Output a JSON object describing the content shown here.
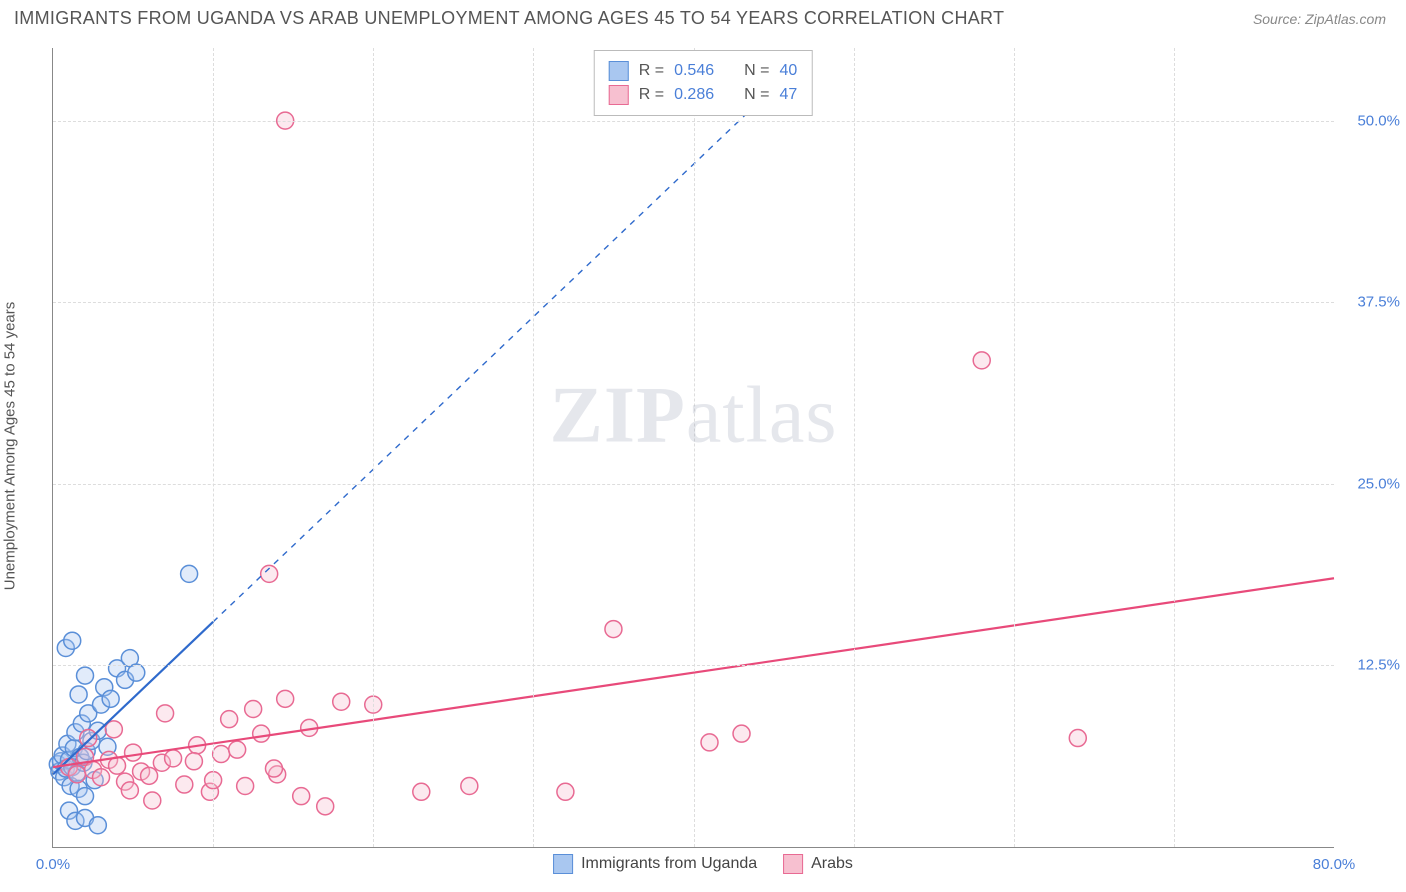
{
  "header": {
    "title": "IMMIGRANTS FROM UGANDA VS ARAB UNEMPLOYMENT AMONG AGES 45 TO 54 YEARS CORRELATION CHART",
    "source_prefix": "Source: ",
    "source": "ZipAtlas.com"
  },
  "watermark": {
    "part1": "ZIP",
    "part2": "atlas"
  },
  "chart": {
    "type": "scatter",
    "background_color": "#ffffff",
    "grid_color": "#dddddd",
    "axis_color": "#888888",
    "xlim": [
      0,
      80
    ],
    "ylim": [
      0,
      55
    ],
    "xticks": [
      {
        "v": 0.0,
        "label": "0.0%"
      },
      {
        "v": 80.0,
        "label": "80.0%"
      }
    ],
    "xgrid": [
      10,
      20,
      30,
      40,
      50,
      60,
      70
    ],
    "yticks": [
      {
        "v": 12.5,
        "label": "12.5%"
      },
      {
        "v": 25.0,
        "label": "25.0%"
      },
      {
        "v": 37.5,
        "label": "37.5%"
      },
      {
        "v": 50.0,
        "label": "50.0%"
      }
    ],
    "ylabel": "Unemployment Among Ages 45 to 54 years",
    "label_fontsize": 15,
    "tick_fontsize": 15,
    "tick_color": "#4a7fd8",
    "marker_radius": 8.5,
    "marker_opacity": 0.35,
    "marker_stroke_width": 1.5,
    "series": [
      {
        "name": "Immigrants from Uganda",
        "fill": "#a9c7f0",
        "stroke": "#5a8fd8",
        "line_color": "#2f6acc",
        "trend": {
          "x1": 0,
          "y1": 5.0,
          "x2": 10,
          "y2": 15.5,
          "dashed_extend_to_x": 45
        },
        "R": "0.546",
        "N": "40",
        "points": [
          [
            0.3,
            5.7
          ],
          [
            0.4,
            5.2
          ],
          [
            0.5,
            5.9
          ],
          [
            0.6,
            6.3
          ],
          [
            0.7,
            4.8
          ],
          [
            0.8,
            5.4
          ],
          [
            0.9,
            7.1
          ],
          [
            1.0,
            6.0
          ],
          [
            1.1,
            4.2
          ],
          [
            1.2,
            5.5
          ],
          [
            1.3,
            6.8
          ],
          [
            1.4,
            7.9
          ],
          [
            1.5,
            5.1
          ],
          [
            1.6,
            4.0
          ],
          [
            1.7,
            6.2
          ],
          [
            1.8,
            8.5
          ],
          [
            1.9,
            5.8
          ],
          [
            2.0,
            3.5
          ],
          [
            2.1,
            6.6
          ],
          [
            2.2,
            9.2
          ],
          [
            2.4,
            7.3
          ],
          [
            2.6,
            4.6
          ],
          [
            2.8,
            8.0
          ],
          [
            3.0,
            9.8
          ],
          [
            3.2,
            11.0
          ],
          [
            3.4,
            6.9
          ],
          [
            3.6,
            10.2
          ],
          [
            4.0,
            12.3
          ],
          [
            1.0,
            2.5
          ],
          [
            1.4,
            1.8
          ],
          [
            2.0,
            2.0
          ],
          [
            2.8,
            1.5
          ],
          [
            0.8,
            13.7
          ],
          [
            1.2,
            14.2
          ],
          [
            2.0,
            11.8
          ],
          [
            4.5,
            11.5
          ],
          [
            4.8,
            13.0
          ],
          [
            5.2,
            12.0
          ],
          [
            1.6,
            10.5
          ],
          [
            8.5,
            18.8
          ]
        ]
      },
      {
        "name": "Arabs",
        "fill": "#f7c0d0",
        "stroke": "#e86a93",
        "line_color": "#e84a7a",
        "trend": {
          "x1": 0,
          "y1": 5.5,
          "x2": 80,
          "y2": 18.5
        },
        "R": "0.286",
        "N": "47",
        "points": [
          [
            1.0,
            5.5
          ],
          [
            1.5,
            5.0
          ],
          [
            2.0,
            6.2
          ],
          [
            2.5,
            5.3
          ],
          [
            3.0,
            4.8
          ],
          [
            3.5,
            6.0
          ],
          [
            4.0,
            5.6
          ],
          [
            4.5,
            4.5
          ],
          [
            5.0,
            6.5
          ],
          [
            5.5,
            5.2
          ],
          [
            6.0,
            4.9
          ],
          [
            6.8,
            5.8
          ],
          [
            7.5,
            6.1
          ],
          [
            8.2,
            4.3
          ],
          [
            9.0,
            7.0
          ],
          [
            9.8,
            3.8
          ],
          [
            10.5,
            6.4
          ],
          [
            11.0,
            8.8
          ],
          [
            12.0,
            4.2
          ],
          [
            12.5,
            9.5
          ],
          [
            13.0,
            7.8
          ],
          [
            14.0,
            5.0
          ],
          [
            14.5,
            10.2
          ],
          [
            15.5,
            3.5
          ],
          [
            16.0,
            8.2
          ],
          [
            17.0,
            2.8
          ],
          [
            18.0,
            10.0
          ],
          [
            20.0,
            9.8
          ],
          [
            23.0,
            3.8
          ],
          [
            26.0,
            4.2
          ],
          [
            13.5,
            18.8
          ],
          [
            35.0,
            15.0
          ],
          [
            32.0,
            3.8
          ],
          [
            41.0,
            7.2
          ],
          [
            43.0,
            7.8
          ],
          [
            64.0,
            7.5
          ],
          [
            58.0,
            33.5
          ],
          [
            14.5,
            50.0
          ],
          [
            2.2,
            7.5
          ],
          [
            3.8,
            8.1
          ],
          [
            6.2,
            3.2
          ],
          [
            8.8,
            5.9
          ],
          [
            10.0,
            4.6
          ],
          [
            11.5,
            6.7
          ],
          [
            13.8,
            5.4
          ],
          [
            7.0,
            9.2
          ],
          [
            4.8,
            3.9
          ]
        ]
      }
    ]
  },
  "legend_top": {
    "r_label": "R =",
    "n_label": "N ="
  },
  "legend_bottom": {}
}
